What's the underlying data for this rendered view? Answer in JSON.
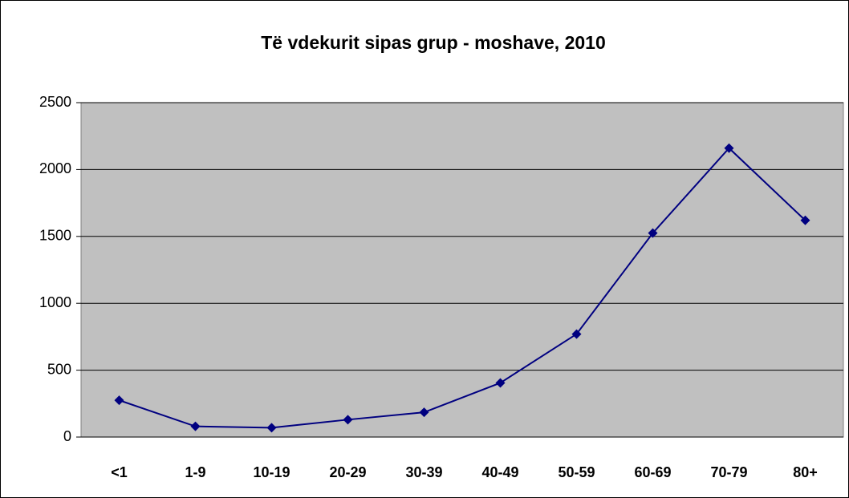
{
  "chart_data": {
    "type": "line",
    "title": "Të vdekurit sipas grup - moshave, 2010",
    "categories": [
      "<1",
      "1-9",
      "10-19",
      "20-29",
      "30-39",
      "40-49",
      "50-59",
      "60-69",
      "70-79",
      "80+"
    ],
    "series": [
      {
        "name": "Të vdekurit",
        "color": "#000080",
        "values": [
          275,
          80,
          70,
          130,
          185,
          405,
          770,
          1525,
          2160,
          1620
        ]
      }
    ],
    "ylim": [
      0,
      2500
    ],
    "yticks": [
      0,
      500,
      1000,
      1500,
      2000,
      2500
    ],
    "grid": true,
    "legend": false
  }
}
